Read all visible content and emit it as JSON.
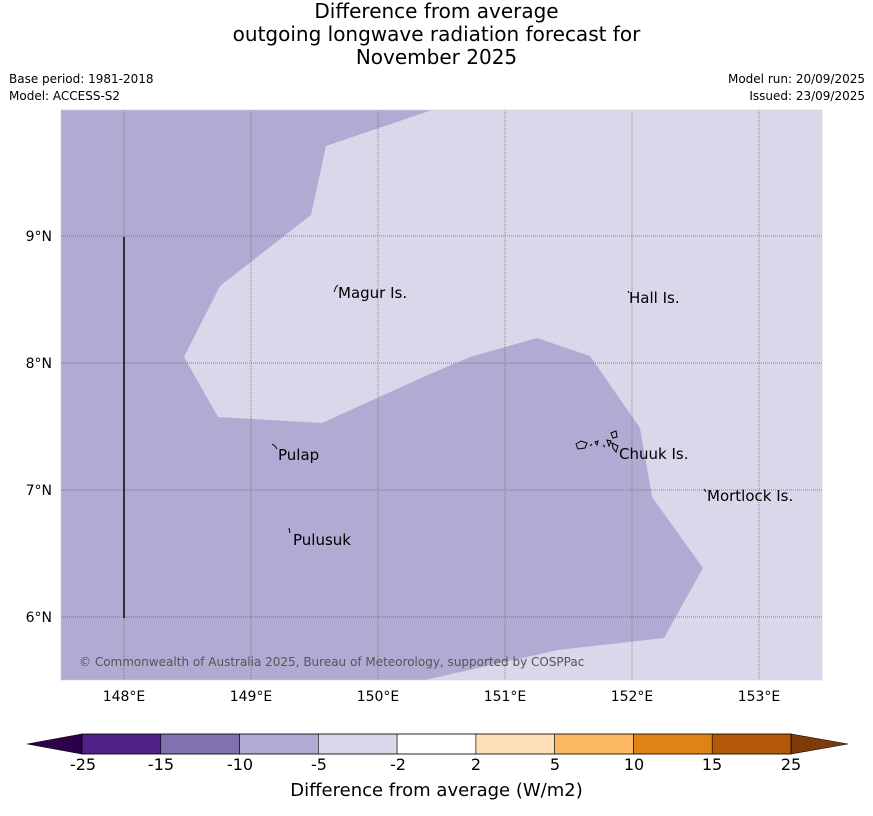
{
  "title_lines": [
    "Difference from average",
    "outgoing longwave radiation forecast for",
    "November 2025"
  ],
  "meta": {
    "base_period": "Base period: 1981-2018",
    "model": "Model: ACCESS-S2",
    "model_run": "Model run: 20/09/2025",
    "issued": "Issued: 23/09/2025"
  },
  "map": {
    "extent": {
      "lon_min": 147.5,
      "lon_max": 153.5,
      "lat_min": 5.5,
      "lat_max": 10.0
    },
    "lon_ticks": [
      "148°E",
      "149°E",
      "150°E",
      "151°E",
      "152°E",
      "153°E"
    ],
    "lat_ticks": [
      "9°N",
      "8°N",
      "7°N",
      "6°N"
    ],
    "places": [
      {
        "name": "Magur Is.",
        "lon": 149.7,
        "lat": 8.55
      },
      {
        "name": "Hall Is.",
        "lon": 151.97,
        "lat": 8.52
      },
      {
        "name": "Pulap",
        "lon": 149.22,
        "lat": 7.28
      },
      {
        "name": "Chuuk Is.",
        "lon": 151.9,
        "lat": 7.29
      },
      {
        "name": "Mortlock Is.",
        "lon": 152.58,
        "lat": 6.96
      },
      {
        "name": "Pulusuk",
        "lon": 149.33,
        "lat": 6.61
      }
    ],
    "copyright": "© Commonwealth of Australia 2025, Bureau of Meteorology, supported by COSPPac"
  },
  "colors": {
    "class_neg15_neg10": "#b0abd3",
    "class_neg5_neg2": "#d8d8ea",
    "gridline": "#666666"
  },
  "colorbar": {
    "title": "Difference from average (W/m2)",
    "labels": [
      "-25",
      "-15",
      "-10",
      "-5",
      "-2",
      "2",
      "5",
      "10",
      "15",
      "25"
    ],
    "colors": [
      "#522188",
      "#7f72ae",
      "#b0abd3",
      "#d8d8ea",
      "#ffffff",
      "#fee0b6",
      "#fdb863",
      "#e08214",
      "#b35806"
    ],
    "extend_low_color": "#2d004b",
    "extend_high_color": "#7f3b08"
  }
}
